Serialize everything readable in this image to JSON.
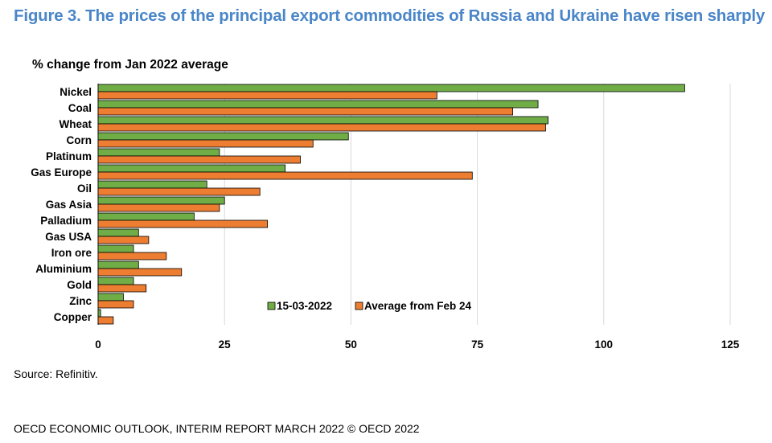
{
  "title": "Figure 3. The prices of the principal export commodities of Russia and Ukraine have risen sharply",
  "source": "Source: Refinitiv.",
  "footer": "OECD ECONOMIC OUTLOOK, INTERIM REPORT MARCH 2022 © OECD 2022",
  "colors": {
    "series1": "#70ad47",
    "series2": "#ed7d31",
    "grid": "#d9d9d9"
  },
  "chart_data": {
    "type": "bar",
    "orientation": "horizontal",
    "ylabel": "% change from Jan 2022 average",
    "categories": [
      "Nickel",
      "Coal",
      "Wheat",
      "Corn",
      "Platinum",
      "Gas Europe",
      "Oil",
      "Gas Asia",
      "Palladium",
      "Gas USA",
      "Iron ore",
      "Aluminium",
      "Gold",
      "Zinc",
      "Copper"
    ],
    "series": [
      {
        "name": "15-03-2022",
        "values": [
          116,
          87,
          89,
          49.5,
          24,
          37,
          21.5,
          25,
          19,
          8,
          7,
          8,
          7,
          5,
          0.5
        ]
      },
      {
        "name": "Average from Feb 24",
        "values": [
          67,
          82,
          88.5,
          42.5,
          40,
          74,
          32,
          24,
          33.5,
          10,
          13.5,
          16.5,
          9.5,
          7,
          3
        ]
      }
    ],
    "xlim": [
      0,
      125
    ],
    "xticks": [
      "0",
      "25",
      "50",
      "75",
      "100",
      "125"
    ],
    "grid": true,
    "legend_position": "bottom-center"
  }
}
